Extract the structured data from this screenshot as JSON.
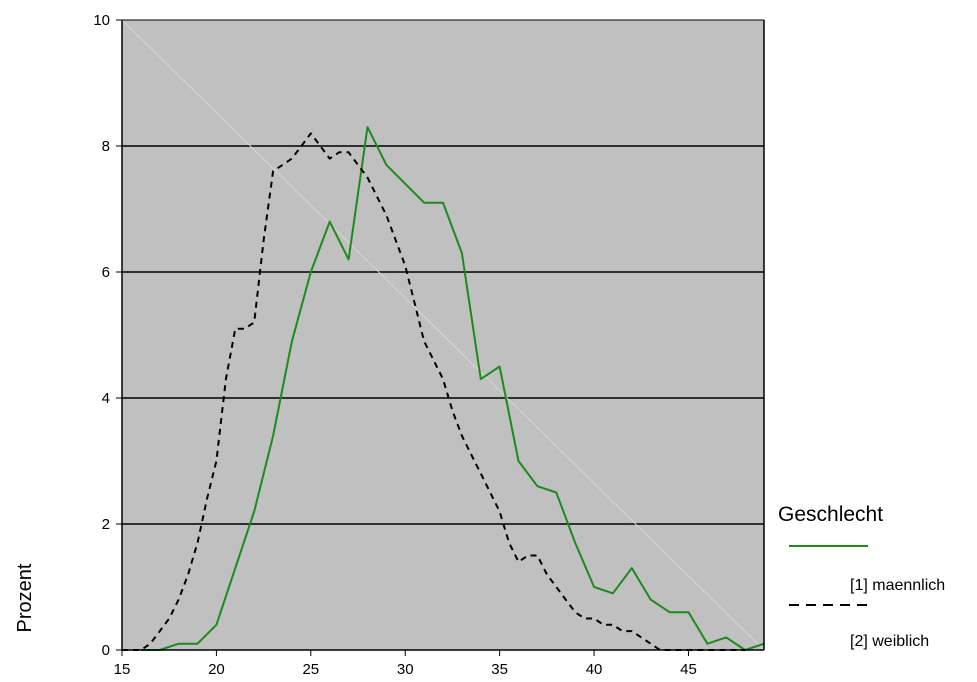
{
  "chart_data": {
    "type": "line",
    "title": "",
    "xlabel": "",
    "ylabel": "Prozent",
    "xlim": [
      15,
      49
    ],
    "ylim": [
      0,
      10
    ],
    "xticks": [
      15,
      20,
      25,
      30,
      35,
      40,
      45
    ],
    "yticks": [
      0,
      2,
      4,
      6,
      8,
      10
    ],
    "grid": "horizontal",
    "background_color": "#c0c0c0",
    "legend": {
      "title": "Geschlecht",
      "placement": "right",
      "entries": [
        "[1] maennlich",
        "[2] weiblich"
      ]
    },
    "series": [
      {
        "name": "[1] maennlich",
        "color": "#1e8a1e",
        "style": "solid",
        "x": [
          16,
          17,
          18,
          19,
          20,
          21,
          22,
          23,
          24,
          25,
          26,
          27,
          28,
          29,
          30,
          31,
          32,
          33,
          34,
          35,
          36,
          37,
          38,
          39,
          40,
          41,
          42,
          43,
          44,
          45,
          46,
          47,
          48,
          49
        ],
        "y": [
          0.0,
          0.0,
          0.1,
          0.1,
          0.4,
          1.3,
          2.2,
          3.4,
          4.9,
          6.0,
          6.8,
          6.2,
          8.3,
          7.7,
          7.4,
          7.1,
          7.1,
          6.3,
          4.3,
          4.5,
          3.0,
          2.6,
          2.5,
          1.7,
          1.0,
          0.9,
          1.3,
          0.8,
          0.6,
          0.6,
          0.1,
          0.2,
          0.0,
          0.1
        ]
      },
      {
        "name": "[2] weiblich",
        "color": "#000000",
        "style": "dashed",
        "x": [
          15,
          15.5,
          16,
          16.5,
          17,
          17.5,
          18,
          18.5,
          19,
          19.5,
          20,
          20.5,
          21,
          21.5,
          22,
          22.5,
          23,
          23.5,
          24,
          24.5,
          25,
          25.5,
          26,
          26.5,
          27,
          27.5,
          28,
          28.5,
          29,
          29.5,
          30,
          30.5,
          31,
          31.5,
          32,
          32.5,
          33,
          33.5,
          34,
          34.5,
          35,
          35.5,
          36,
          36.5,
          37,
          37.5,
          38,
          38.5,
          39,
          39.5,
          40,
          40.5,
          41,
          41.5,
          42,
          42.5,
          43,
          43.5,
          44,
          44.5,
          45,
          45.5,
          46,
          46.5,
          47,
          47.5,
          48
        ],
        "y": [
          0.0,
          0.0,
          0.0,
          0.1,
          0.3,
          0.5,
          0.8,
          1.2,
          1.7,
          2.4,
          3.0,
          4.3,
          5.1,
          5.1,
          5.2,
          6.5,
          7.6,
          7.7,
          7.8,
          8.0,
          8.2,
          8.0,
          7.8,
          7.9,
          7.9,
          7.7,
          7.5,
          7.2,
          6.9,
          6.5,
          6.1,
          5.5,
          4.9,
          4.6,
          4.3,
          3.8,
          3.4,
          3.1,
          2.8,
          2.5,
          2.2,
          1.7,
          1.4,
          1.5,
          1.5,
          1.2,
          1.0,
          0.8,
          0.6,
          0.5,
          0.5,
          0.4,
          0.4,
          0.3,
          0.3,
          0.2,
          0.1,
          0.0,
          0.0,
          0.0,
          0.0,
          0.0,
          0.0,
          0.0,
          0.0,
          0.0,
          0.0
        ]
      }
    ]
  }
}
